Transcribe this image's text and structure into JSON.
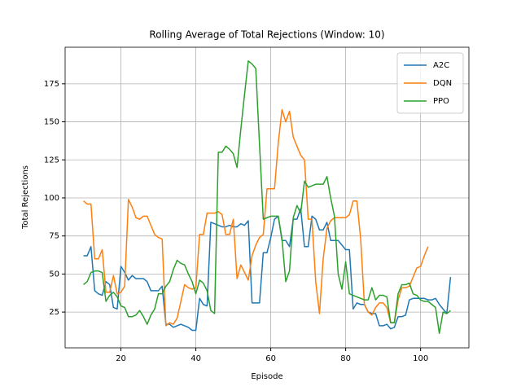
{
  "chart_data": {
    "type": "line",
    "title": "Rolling Average of Total Rejections (Window: 10)",
    "xlabel": "Episode",
    "ylabel": "Total Rejections",
    "x": [
      10,
      11,
      12,
      13,
      14,
      15,
      16,
      17,
      18,
      19,
      20,
      21,
      22,
      23,
      24,
      25,
      26,
      27,
      28,
      29,
      30,
      31,
      32,
      33,
      34,
      35,
      36,
      37,
      38,
      39,
      40,
      41,
      42,
      43,
      44,
      45,
      46,
      47,
      48,
      49,
      50,
      51,
      52,
      53,
      54,
      55,
      56,
      57,
      58,
      59,
      60,
      61,
      62,
      63,
      64,
      65,
      66,
      67,
      68,
      69,
      70,
      71,
      72,
      73,
      74,
      75,
      76,
      77,
      78,
      79,
      80,
      81,
      82,
      83,
      84,
      85,
      86,
      87,
      88,
      89,
      90,
      91,
      92,
      93,
      94,
      95,
      96,
      97,
      98,
      99,
      100,
      101,
      102,
      103,
      104,
      105,
      106,
      107,
      108
    ],
    "series": [
      {
        "name": "A2C",
        "color": "#1f77b4",
        "values": [
          62,
          62,
          68,
          39,
          37,
          36,
          45,
          43,
          28,
          27,
          55,
          51,
          46,
          49,
          47,
          47,
          47,
          45,
          39,
          39,
          39,
          42,
          17,
          17,
          15,
          16,
          17,
          16,
          15,
          13,
          13,
          34,
          30,
          29,
          84,
          83,
          82,
          81,
          81,
          82,
          81,
          81,
          83,
          82,
          85,
          31,
          31,
          31,
          64,
          64,
          74,
          86,
          88,
          72,
          72,
          68,
          86,
          86,
          93,
          68,
          68,
          88,
          86,
          79,
          79,
          84,
          72,
          72,
          72,
          69,
          66,
          66,
          27,
          31,
          30,
          30,
          25,
          24,
          24,
          16,
          16,
          17,
          14,
          15,
          22,
          22,
          23,
          33,
          34,
          34,
          34,
          34,
          33,
          33,
          34,
          30,
          27,
          24,
          48
        ]
      },
      {
        "name": "DQN",
        "color": "#ff7f0e",
        "values": [
          98,
          96,
          96,
          60,
          60,
          66,
          38,
          38,
          49,
          37,
          38,
          42,
          99,
          94,
          87,
          86,
          88,
          88,
          82,
          76,
          74,
          73,
          16,
          18,
          17,
          21,
          32,
          43,
          41,
          40,
          41,
          76,
          76,
          90,
          90,
          90,
          91,
          89,
          76,
          76,
          86,
          47,
          56,
          51,
          46,
          62,
          69,
          74,
          76,
          106,
          106,
          106,
          136,
          158,
          150,
          157,
          140,
          134,
          128,
          125,
          86,
          86,
          45,
          24,
          60,
          80,
          85,
          87,
          87,
          87,
          87,
          89,
          98,
          98,
          73,
          30,
          25,
          23,
          28,
          31,
          31,
          28,
          18,
          18,
          33,
          41,
          41,
          42,
          48,
          54,
          55,
          62,
          68,
          null,
          null,
          null,
          null,
          null,
          null
        ]
      },
      {
        "name": "PPO",
        "color": "#2ca02c",
        "values": [
          43,
          45,
          51,
          52,
          52,
          51,
          32,
          36,
          38,
          35,
          29,
          28,
          22,
          22,
          23,
          26,
          22,
          17,
          23,
          27,
          37,
          37,
          42,
          45,
          53,
          59,
          57,
          56,
          50,
          45,
          37,
          46,
          44,
          39,
          26,
          24,
          130,
          130,
          134,
          132,
          129,
          120,
          145,
          168,
          190,
          188,
          185,
          135,
          86,
          87,
          88,
          88,
          88,
          73,
          45,
          52,
          87,
          95,
          90,
          111,
          107,
          108,
          109,
          109,
          109,
          114,
          100,
          88,
          50,
          40,
          58,
          37,
          36,
          35,
          34,
          33,
          33,
          41,
          33,
          36,
          36,
          35,
          18,
          18,
          37,
          43,
          43,
          44,
          37,
          36,
          33,
          32,
          32,
          30,
          28,
          11,
          25,
          24,
          26
        ]
      }
    ],
    "xlim": [
      5.1,
      112.9
    ],
    "ylim": [
      1.5,
      199
    ],
    "xticks": [
      20,
      40,
      60,
      80,
      100
    ],
    "yticks": [
      25,
      50,
      75,
      100,
      125,
      150,
      175
    ],
    "grid": true,
    "legend": "upper right"
  }
}
